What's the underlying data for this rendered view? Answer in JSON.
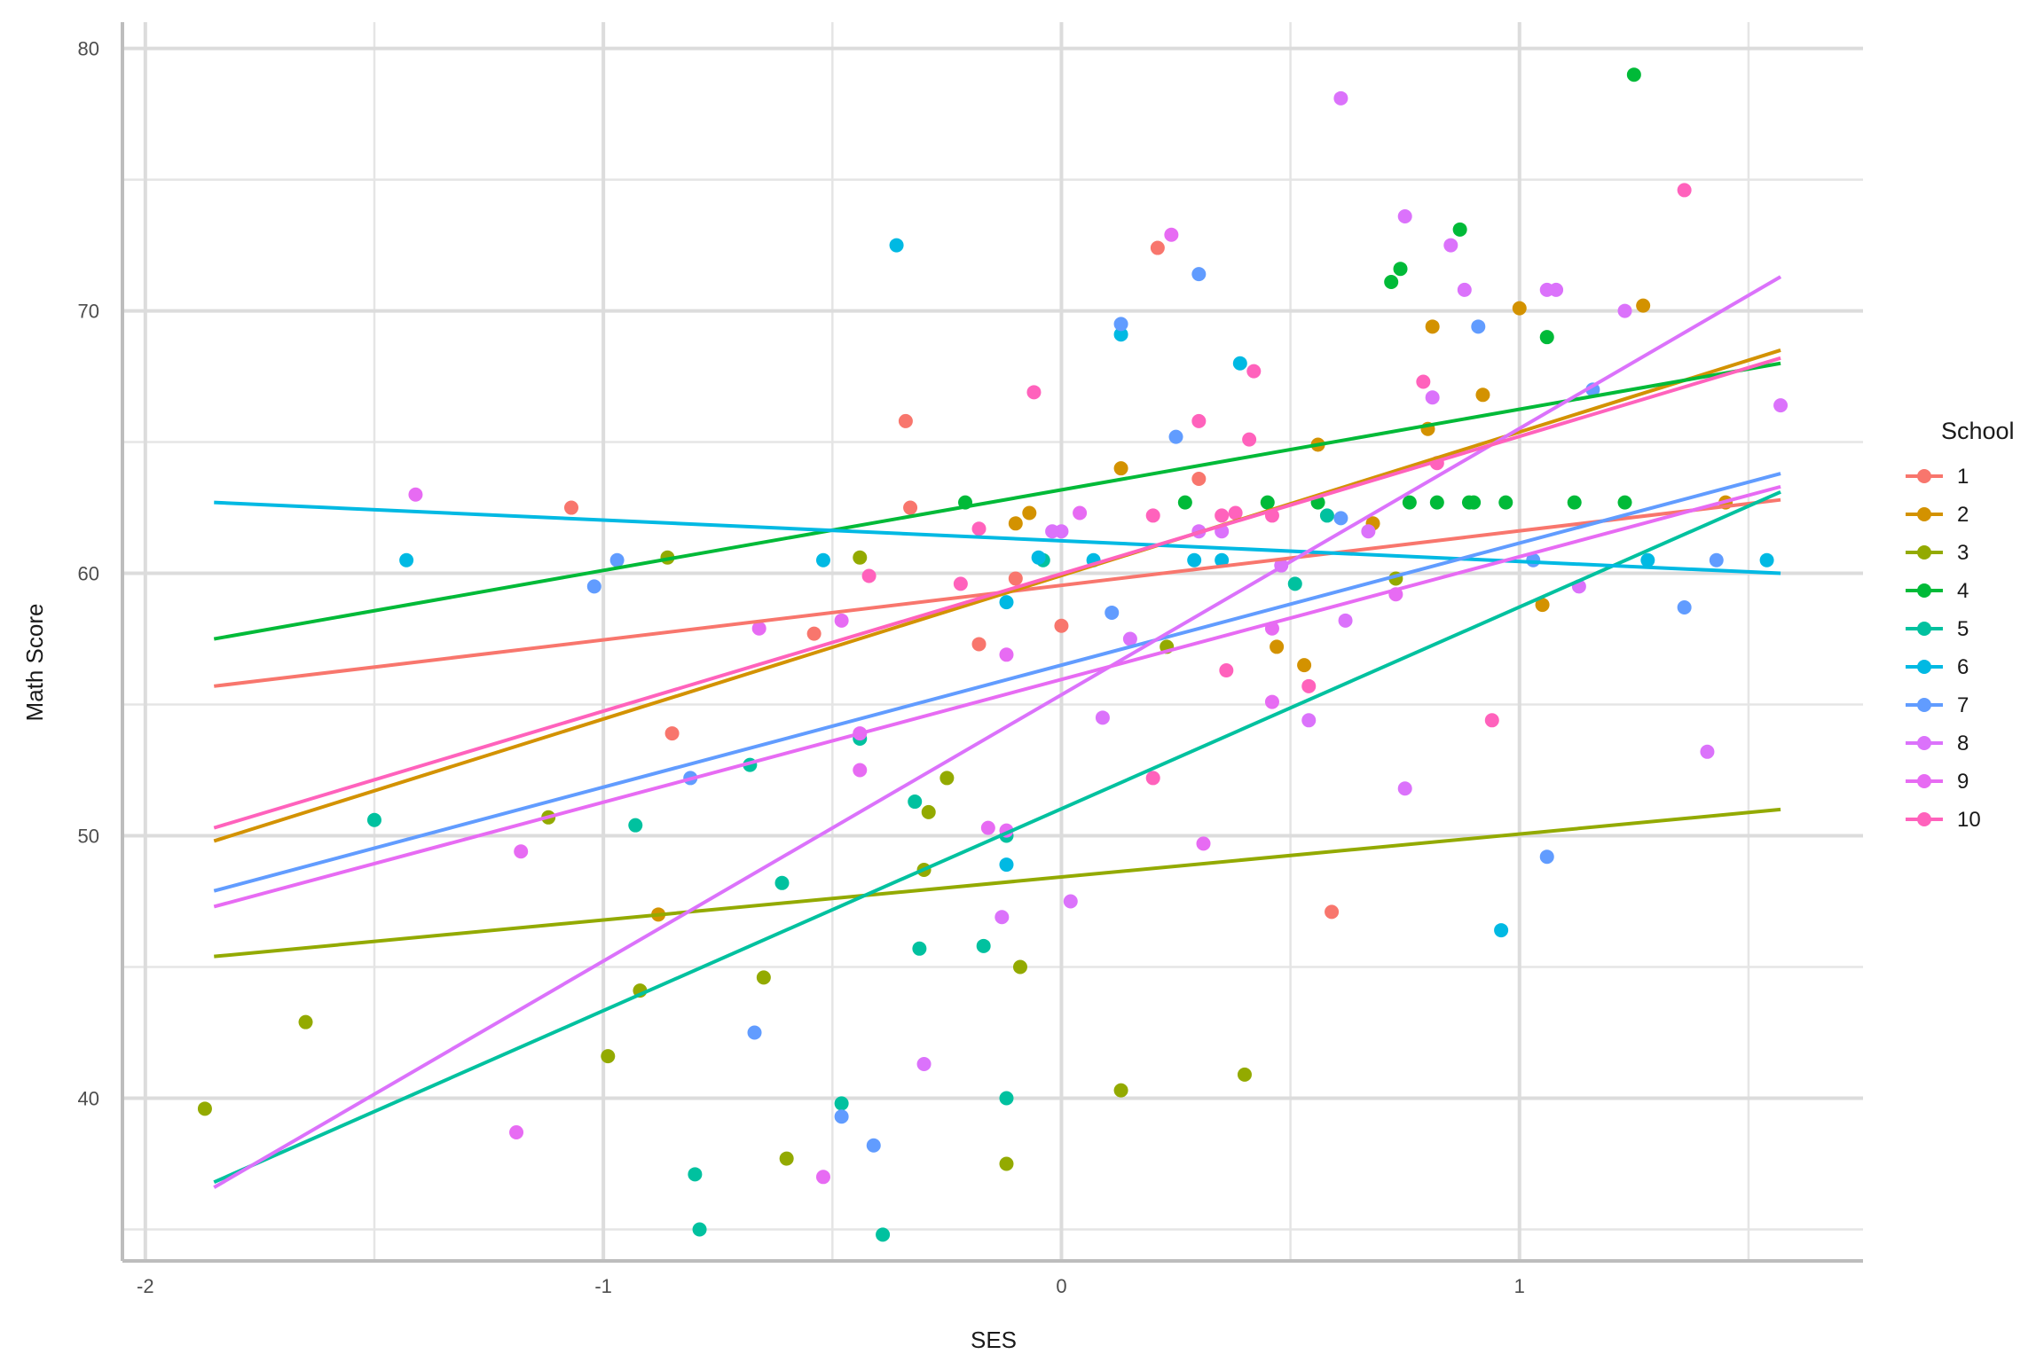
{
  "chart_data": {
    "type": "scatter",
    "title": "",
    "xlabel": "SES",
    "ylabel": "Math Score",
    "xlim": [
      -2.05,
      1.75
    ],
    "ylim": [
      33.8,
      81
    ],
    "x_ticks": [
      -2,
      -1,
      0,
      1
    ],
    "y_ticks": [
      40,
      50,
      60,
      70,
      80
    ],
    "grid": true,
    "legend": {
      "title": "School",
      "placement": "right"
    },
    "series": [
      {
        "name": "1",
        "color": "#F8766D",
        "line": [
          [
            -1.85,
            55.7
          ],
          [
            1.57,
            62.8
          ]
        ],
        "points": [
          [
            -1.07,
            62.5
          ],
          [
            -0.85,
            53.9
          ],
          [
            -0.54,
            57.7
          ],
          [
            -0.34,
            65.8
          ],
          [
            -0.33,
            62.5
          ],
          [
            -0.18,
            57.3
          ],
          [
            -0.1,
            59.8
          ],
          [
            0.0,
            58.0
          ],
          [
            0.21,
            72.4
          ],
          [
            0.3,
            63.6
          ],
          [
            0.59,
            47.1
          ]
        ]
      },
      {
        "name": "2",
        "color": "#D39200",
        "line": [
          [
            -1.85,
            49.8
          ],
          [
            1.57,
            68.5
          ]
        ],
        "points": [
          [
            -0.88,
            47.0
          ],
          [
            -0.1,
            61.9
          ],
          [
            -0.07,
            62.3
          ],
          [
            0.13,
            64.0
          ],
          [
            0.47,
            57.2
          ],
          [
            0.53,
            56.5
          ],
          [
            0.56,
            64.9
          ],
          [
            0.68,
            61.9
          ],
          [
            0.8,
            65.5
          ],
          [
            0.81,
            69.4
          ],
          [
            0.92,
            66.8
          ],
          [
            1.0,
            70.1
          ],
          [
            1.05,
            58.8
          ],
          [
            1.27,
            70.2
          ],
          [
            1.45,
            62.7
          ]
        ]
      },
      {
        "name": "3",
        "color": "#93AA00",
        "line": [
          [
            -1.85,
            45.4
          ],
          [
            1.57,
            51.0
          ]
        ],
        "points": [
          [
            -1.87,
            39.6
          ],
          [
            -1.65,
            42.9
          ],
          [
            -1.12,
            50.7
          ],
          [
            -0.99,
            41.6
          ],
          [
            -0.92,
            44.1
          ],
          [
            -0.86,
            60.6
          ],
          [
            -0.65,
            44.6
          ],
          [
            -0.6,
            37.7
          ],
          [
            -0.44,
            60.6
          ],
          [
            -0.3,
            48.7
          ],
          [
            -0.29,
            50.9
          ],
          [
            -0.25,
            52.2
          ],
          [
            -0.12,
            37.5
          ],
          [
            -0.09,
            45.0
          ],
          [
            0.13,
            40.3
          ],
          [
            0.23,
            57.2
          ],
          [
            0.4,
            40.9
          ],
          [
            0.73,
            59.8
          ]
        ]
      },
      {
        "name": "4",
        "color": "#00BA38",
        "line": [
          [
            -1.85,
            57.5
          ],
          [
            1.57,
            68.0
          ]
        ],
        "points": [
          [
            -0.21,
            62.7
          ],
          [
            0.27,
            62.7
          ],
          [
            0.45,
            62.7
          ],
          [
            0.56,
            62.7
          ],
          [
            0.72,
            71.1
          ],
          [
            0.74,
            71.6
          ],
          [
            0.76,
            62.7
          ],
          [
            0.82,
            62.7
          ],
          [
            0.87,
            73.1
          ],
          [
            0.89,
            62.7
          ],
          [
            0.9,
            62.7
          ],
          [
            0.97,
            62.7
          ],
          [
            1.06,
            69.0
          ],
          [
            1.12,
            62.7
          ],
          [
            1.23,
            62.7
          ],
          [
            1.25,
            79.0
          ]
        ]
      },
      {
        "name": "5",
        "color": "#00C19F",
        "line": [
          [
            -1.85,
            36.8
          ],
          [
            1.57,
            63.1
          ]
        ],
        "points": [
          [
            -1.5,
            50.6
          ],
          [
            -0.93,
            50.4
          ],
          [
            -0.8,
            37.1
          ],
          [
            -0.79,
            35.0
          ],
          [
            -0.68,
            52.7
          ],
          [
            -0.61,
            48.2
          ],
          [
            -0.48,
            39.8
          ],
          [
            -0.44,
            53.7
          ],
          [
            -0.39,
            34.8
          ],
          [
            -0.32,
            51.3
          ],
          [
            -0.31,
            45.7
          ],
          [
            -0.17,
            45.8
          ],
          [
            -0.12,
            40.0
          ],
          [
            -0.12,
            50.0
          ],
          [
            -0.04,
            60.5
          ],
          [
            0.51,
            59.6
          ],
          [
            0.58,
            62.2
          ]
        ]
      },
      {
        "name": "6",
        "color": "#00B9E3",
        "line": [
          [
            -1.85,
            62.7
          ],
          [
            1.57,
            60.0
          ]
        ],
        "points": [
          [
            -1.43,
            60.5
          ],
          [
            -0.52,
            60.5
          ],
          [
            -0.36,
            72.5
          ],
          [
            -0.12,
            58.9
          ],
          [
            -0.12,
            48.9
          ],
          [
            -0.05,
            60.6
          ],
          [
            0.07,
            60.5
          ],
          [
            0.13,
            69.1
          ],
          [
            0.29,
            60.5
          ],
          [
            0.35,
            60.5
          ],
          [
            0.39,
            68.0
          ],
          [
            0.96,
            46.4
          ],
          [
            1.28,
            60.5
          ],
          [
            1.54,
            60.5
          ]
        ]
      },
      {
        "name": "7",
        "color": "#619CFF",
        "line": [
          [
            -1.85,
            47.9
          ],
          [
            1.57,
            63.8
          ]
        ],
        "points": [
          [
            -1.02,
            59.5
          ],
          [
            -0.97,
            60.5
          ],
          [
            -0.81,
            52.2
          ],
          [
            -0.67,
            42.5
          ],
          [
            -0.48,
            39.3
          ],
          [
            -0.41,
            38.2
          ],
          [
            0.11,
            58.5
          ],
          [
            0.13,
            69.5
          ],
          [
            0.25,
            65.2
          ],
          [
            0.3,
            71.4
          ],
          [
            0.61,
            62.1
          ],
          [
            0.91,
            69.4
          ],
          [
            1.03,
            60.5
          ],
          [
            1.06,
            49.2
          ],
          [
            1.16,
            67.0
          ],
          [
            1.36,
            58.7
          ],
          [
            1.43,
            60.5
          ]
        ]
      },
      {
        "name": "8",
        "color": "#DB72FB",
        "line": [
          [
            -1.85,
            36.6
          ],
          [
            1.57,
            71.3
          ]
        ],
        "points": [
          [
            -0.3,
            41.3
          ],
          [
            -0.13,
            46.9
          ],
          [
            -0.02,
            61.6
          ],
          [
            0.0,
            61.6
          ],
          [
            0.02,
            47.5
          ],
          [
            0.09,
            54.5
          ],
          [
            0.15,
            57.5
          ],
          [
            0.3,
            61.6
          ],
          [
            0.35,
            61.6
          ],
          [
            0.48,
            60.3
          ],
          [
            0.54,
            54.4
          ],
          [
            0.61,
            78.1
          ],
          [
            0.62,
            58.2
          ],
          [
            0.67,
            61.6
          ],
          [
            0.75,
            51.8
          ],
          [
            0.75,
            73.6
          ],
          [
            0.81,
            66.7
          ],
          [
            0.85,
            72.5
          ],
          [
            0.88,
            70.8
          ],
          [
            1.06,
            70.8
          ],
          [
            1.08,
            70.8
          ],
          [
            1.13,
            59.5
          ],
          [
            1.23,
            70.0
          ],
          [
            1.41,
            53.2
          ],
          [
            1.57,
            66.4
          ]
        ]
      },
      {
        "name": "9",
        "color": "#E76BF3",
        "line": [
          [
            -1.85,
            47.3
          ],
          [
            1.57,
            63.3
          ]
        ],
        "points": [
          [
            -1.41,
            63.0
          ],
          [
            -1.19,
            38.7
          ],
          [
            -1.18,
            49.4
          ],
          [
            -0.66,
            57.9
          ],
          [
            -0.52,
            37.0
          ],
          [
            -0.48,
            58.2
          ],
          [
            -0.44,
            53.9
          ],
          [
            -0.44,
            52.5
          ],
          [
            -0.16,
            50.3
          ],
          [
            -0.12,
            56.9
          ],
          [
            -0.12,
            50.2
          ],
          [
            0.04,
            62.3
          ],
          [
            0.24,
            72.9
          ],
          [
            0.31,
            49.7
          ],
          [
            0.46,
            57.9
          ],
          [
            0.46,
            55.1
          ],
          [
            0.73,
            59.2
          ]
        ]
      },
      {
        "name": "10",
        "color": "#FF62BC",
        "line": [
          [
            -1.85,
            50.3
          ],
          [
            1.57,
            68.2
          ]
        ],
        "points": [
          [
            -0.42,
            59.9
          ],
          [
            -0.22,
            59.6
          ],
          [
            -0.18,
            61.7
          ],
          [
            -0.06,
            66.9
          ],
          [
            0.2,
            52.2
          ],
          [
            0.2,
            62.2
          ],
          [
            0.3,
            65.8
          ],
          [
            0.35,
            62.2
          ],
          [
            0.36,
            56.3
          ],
          [
            0.38,
            62.3
          ],
          [
            0.41,
            65.1
          ],
          [
            0.42,
            67.7
          ],
          [
            0.46,
            62.2
          ],
          [
            0.54,
            55.7
          ],
          [
            0.79,
            67.3
          ],
          [
            0.82,
            64.2
          ],
          [
            0.94,
            54.4
          ],
          [
            1.36,
            74.6
          ]
        ]
      }
    ]
  }
}
